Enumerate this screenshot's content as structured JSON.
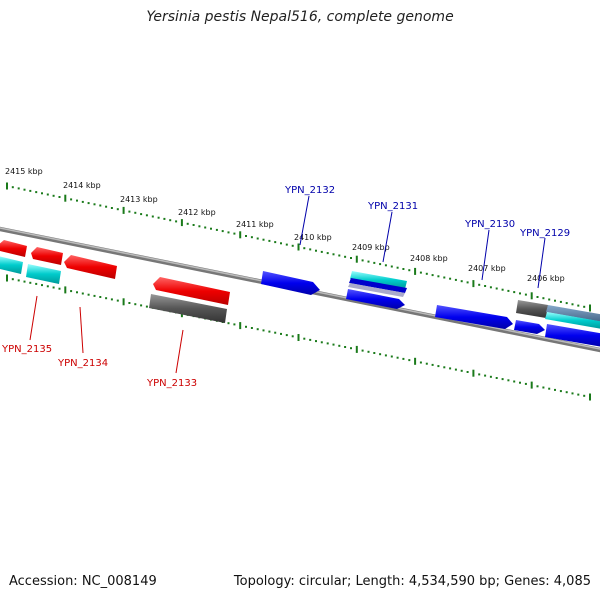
{
  "title": "Yersinia pestis Nepal516, complete genome",
  "footer": {
    "accession": "Accession: NC_008149",
    "summary": "Topology: circular; Length: 4,534,590 bp; Genes: 4,085"
  },
  "scale_labels": [
    "2415 kbp",
    "2414 kbp",
    "2413 kbp",
    "2412 kbp",
    "2411 kbp",
    "2410 kbp",
    "2409 kbp",
    "2408 kbp",
    "2407 kbp",
    "2406 kbp"
  ],
  "gene_labels": {
    "YPN_2135": "YPN_2135",
    "YPN_2134": "YPN_2134",
    "YPN_2133": "YPN_2133",
    "YPN_2132": "YPN_2132",
    "YPN_2131": "YPN_2131",
    "YPN_2130": "YPN_2130",
    "YPN_2129": "YPN_2129"
  },
  "colors": {
    "forward": "#0000ee",
    "reverse": "#ee0000",
    "cyan": "#00cccc",
    "gray": "#555555",
    "tick": "#1a7a1a",
    "backbone": "#888888",
    "label_blue": "#0000aa",
    "label_red": "#cc0000"
  }
}
